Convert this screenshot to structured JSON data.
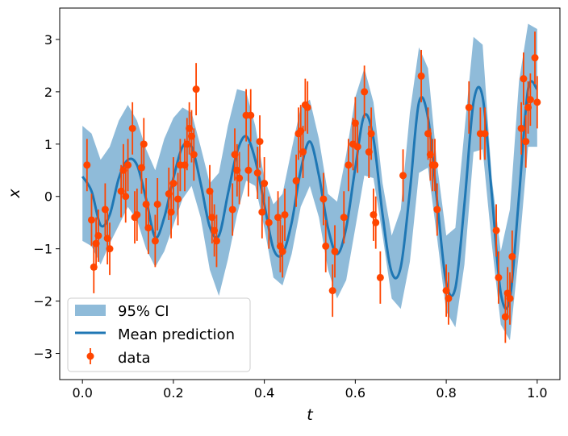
{
  "chart_data": {
    "type": "line",
    "xlabel": "t",
    "ylabel": "x",
    "xlim": [
      -0.05,
      1.05
    ],
    "ylim": [
      -3.5,
      3.6
    ],
    "xticks": [
      0.0,
      0.2,
      0.4,
      0.6,
      0.8,
      1.0
    ],
    "xtick_labels": [
      "0.0",
      "0.2",
      "0.4",
      "0.6",
      "0.8",
      "1.0"
    ],
    "yticks": [
      -3,
      -2,
      -1,
      0,
      1,
      2,
      3
    ],
    "ytick_labels": [
      "−3",
      "−2",
      "−1",
      "0",
      "1",
      "2",
      "3"
    ],
    "grid": false,
    "legend_placement": "lower-left",
    "colors": {
      "ci_fill": "#1f77b4",
      "mean_line": "#1f77b4",
      "data_points": "#ff4500"
    },
    "series": [
      {
        "name": "95% CI",
        "kind": "band",
        "x": [
          0.0,
          0.02,
          0.04,
          0.06,
          0.08,
          0.1,
          0.12,
          0.14,
          0.16,
          0.18,
          0.2,
          0.22,
          0.24,
          0.26,
          0.28,
          0.3,
          0.32,
          0.34,
          0.36,
          0.38,
          0.4,
          0.42,
          0.44,
          0.46,
          0.48,
          0.5,
          0.52,
          0.54,
          0.56,
          0.58,
          0.6,
          0.62,
          0.64,
          0.66,
          0.68,
          0.7,
          0.72,
          0.74,
          0.76,
          0.78,
          0.8,
          0.82,
          0.84,
          0.86,
          0.88,
          0.9,
          0.92,
          0.94,
          0.96,
          0.98,
          1.0
        ],
        "lower": [
          -0.85,
          -0.95,
          -1.3,
          -0.9,
          -0.55,
          -0.2,
          -0.45,
          -1.0,
          -1.35,
          -1.05,
          -0.55,
          -0.05,
          0.2,
          -0.4,
          -1.4,
          -1.9,
          -1.2,
          -0.35,
          0.3,
          0.2,
          -0.6,
          -1.55,
          -1.7,
          -1.1,
          -0.2,
          0.2,
          -0.4,
          -1.4,
          -1.95,
          -1.6,
          -0.6,
          0.4,
          0.35,
          -0.75,
          -1.95,
          -2.15,
          -1.25,
          0.45,
          0.55,
          -0.8,
          -2.2,
          -2.5,
          -1.3,
          0.85,
          0.9,
          -0.9,
          -2.45,
          -2.75,
          -1.05,
          0.95,
          0.95
        ],
        "upper": [
          1.35,
          1.2,
          0.7,
          0.95,
          1.45,
          1.75,
          1.45,
          0.9,
          0.5,
          1.1,
          1.5,
          1.7,
          1.6,
          0.95,
          0.25,
          0.45,
          1.35,
          2.05,
          2.0,
          1.35,
          0.35,
          -0.15,
          0.05,
          0.9,
          1.7,
          1.85,
          1.1,
          0.05,
          -0.1,
          0.8,
          1.9,
          2.45,
          1.8,
          0.25,
          -0.75,
          -0.25,
          1.6,
          2.85,
          2.45,
          0.6,
          -0.75,
          -0.6,
          1.25,
          3.05,
          2.9,
          0.35,
          -1.05,
          -0.25,
          2.2,
          3.3,
          3.2
        ]
      },
      {
        "name": "Mean prediction",
        "kind": "line",
        "x": [
          0.0,
          0.02,
          0.04,
          0.06,
          0.08,
          0.1,
          0.12,
          0.14,
          0.16,
          0.18,
          0.2,
          0.22,
          0.24,
          0.26,
          0.28,
          0.3,
          0.32,
          0.34,
          0.36,
          0.38,
          0.4,
          0.42,
          0.44,
          0.46,
          0.48,
          0.5,
          0.52,
          0.54,
          0.56,
          0.58,
          0.6,
          0.62,
          0.64,
          0.66,
          0.68,
          0.7,
          0.72,
          0.74,
          0.76,
          0.78,
          0.8,
          0.82,
          0.84,
          0.86,
          0.88,
          0.9,
          0.92,
          0.94,
          0.96,
          0.98,
          1.0
        ],
        "y": [
          0.38,
          0.1,
          -0.55,
          -0.35,
          0.35,
          0.7,
          0.6,
          -0.05,
          -0.78,
          -0.4,
          0.35,
          0.95,
          0.95,
          0.25,
          -0.58,
          -0.75,
          0.05,
          0.85,
          1.15,
          0.7,
          -0.15,
          -1.0,
          -1.1,
          -0.5,
          0.5,
          1.05,
          0.4,
          -0.6,
          -1.1,
          -0.6,
          0.55,
          1.55,
          1.1,
          -0.35,
          -1.45,
          -1.35,
          0.1,
          1.8,
          1.5,
          -0.1,
          -1.65,
          -1.75,
          -0.15,
          1.8,
          1.9,
          0.05,
          -1.85,
          -1.95,
          0.0,
          2.05,
          2.05
        ]
      },
      {
        "name": "data",
        "kind": "errorbar",
        "points": [
          [
            0.01,
            0.6,
            0.5
          ],
          [
            0.02,
            -0.45,
            0.5
          ],
          [
            0.025,
            -1.35,
            0.5
          ],
          [
            0.03,
            -0.9,
            0.5
          ],
          [
            0.035,
            -0.75,
            0.5
          ],
          [
            0.05,
            -0.25,
            0.5
          ],
          [
            0.055,
            -0.8,
            0.5
          ],
          [
            0.06,
            -1.0,
            0.5
          ],
          [
            0.085,
            0.1,
            0.5
          ],
          [
            0.09,
            0.5,
            0.5
          ],
          [
            0.095,
            0.0,
            0.5
          ],
          [
            0.1,
            0.6,
            0.5
          ],
          [
            0.11,
            1.3,
            0.5
          ],
          [
            0.115,
            -0.4,
            0.5
          ],
          [
            0.12,
            -0.35,
            0.5
          ],
          [
            0.13,
            0.55,
            0.5
          ],
          [
            0.135,
            1.0,
            0.5
          ],
          [
            0.14,
            -0.15,
            0.5
          ],
          [
            0.145,
            -0.6,
            0.5
          ],
          [
            0.16,
            -0.85,
            0.5
          ],
          [
            0.165,
            -0.15,
            0.5
          ],
          [
            0.19,
            0.05,
            0.5
          ],
          [
            0.195,
            -0.3,
            0.5
          ],
          [
            0.2,
            0.25,
            0.5
          ],
          [
            0.21,
            -0.05,
            0.5
          ],
          [
            0.215,
            0.6,
            0.5
          ],
          [
            0.225,
            0.6,
            0.5
          ],
          [
            0.23,
            1.0,
            0.5
          ],
          [
            0.235,
            1.3,
            0.5
          ],
          [
            0.24,
            1.15,
            0.5
          ],
          [
            0.245,
            0.8,
            0.5
          ],
          [
            0.25,
            2.05,
            0.5
          ],
          [
            0.28,
            0.1,
            0.5
          ],
          [
            0.285,
            -0.4,
            0.5
          ],
          [
            0.29,
            -0.65,
            0.5
          ],
          [
            0.295,
            -0.85,
            0.5
          ],
          [
            0.33,
            -0.25,
            0.5
          ],
          [
            0.335,
            0.8,
            0.5
          ],
          [
            0.34,
            0.5,
            0.5
          ],
          [
            0.345,
            0.35,
            0.5
          ],
          [
            0.36,
            1.55,
            0.5
          ],
          [
            0.365,
            0.5,
            0.5
          ],
          [
            0.37,
            1.55,
            0.5
          ],
          [
            0.385,
            0.45,
            0.5
          ],
          [
            0.39,
            1.05,
            0.5
          ],
          [
            0.395,
            -0.3,
            0.5
          ],
          [
            0.4,
            0.25,
            0.5
          ],
          [
            0.41,
            -0.5,
            0.5
          ],
          [
            0.43,
            -0.4,
            0.5
          ],
          [
            0.435,
            -0.95,
            0.5
          ],
          [
            0.44,
            -1.05,
            0.5
          ],
          [
            0.445,
            -0.35,
            0.5
          ],
          [
            0.47,
            0.3,
            0.5
          ],
          [
            0.475,
            1.2,
            0.5
          ],
          [
            0.48,
            1.25,
            0.5
          ],
          [
            0.485,
            0.85,
            0.5
          ],
          [
            0.49,
            1.75,
            0.5
          ],
          [
            0.495,
            1.7,
            0.5
          ],
          [
            0.53,
            -0.05,
            0.5
          ],
          [
            0.535,
            -0.95,
            0.5
          ],
          [
            0.55,
            -1.8,
            0.5
          ],
          [
            0.555,
            -1.05,
            0.5
          ],
          [
            0.575,
            -0.4,
            0.5
          ],
          [
            0.585,
            0.6,
            0.5
          ],
          [
            0.595,
            1.0,
            0.5
          ],
          [
            0.6,
            1.4,
            0.5
          ],
          [
            0.605,
            0.95,
            0.5
          ],
          [
            0.62,
            2.0,
            0.5
          ],
          [
            0.63,
            0.85,
            0.5
          ],
          [
            0.635,
            1.2,
            0.5
          ],
          [
            0.64,
            -0.35,
            0.5
          ],
          [
            0.645,
            -0.5,
            0.5
          ],
          [
            0.655,
            -1.55,
            0.5
          ],
          [
            0.705,
            0.4,
            0.5
          ],
          [
            0.745,
            2.3,
            0.5
          ],
          [
            0.76,
            1.2,
            0.5
          ],
          [
            0.765,
            0.8,
            0.5
          ],
          [
            0.77,
            0.6,
            0.5
          ],
          [
            0.775,
            0.6,
            0.5
          ],
          [
            0.78,
            -0.25,
            0.5
          ],
          [
            0.8,
            -1.8,
            0.5
          ],
          [
            0.805,
            -1.95,
            0.5
          ],
          [
            0.85,
            1.7,
            0.5
          ],
          [
            0.875,
            1.2,
            0.5
          ],
          [
            0.885,
            1.2,
            0.5
          ],
          [
            0.91,
            -0.65,
            0.5
          ],
          [
            0.915,
            -1.55,
            0.5
          ],
          [
            0.93,
            -2.3,
            0.5
          ],
          [
            0.935,
            -1.85,
            0.5
          ],
          [
            0.94,
            -1.95,
            0.5
          ],
          [
            0.945,
            -1.15,
            0.5
          ],
          [
            0.965,
            1.3,
            0.5
          ],
          [
            0.97,
            2.25,
            0.5
          ],
          [
            0.975,
            1.05,
            0.5
          ],
          [
            0.98,
            1.7,
            0.5
          ],
          [
            0.985,
            1.85,
            0.5
          ],
          [
            0.995,
            2.65,
            0.5
          ],
          [
            1.0,
            1.8,
            0.5
          ]
        ]
      }
    ]
  }
}
